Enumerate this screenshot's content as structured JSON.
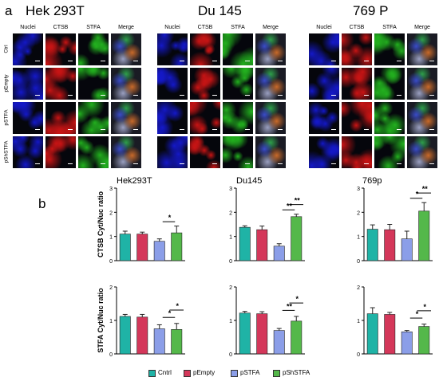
{
  "panel_a": {
    "letter": "a",
    "cell_lines": [
      "Hek 293T",
      "Du 145",
      "769 P"
    ],
    "column_headers": [
      "Nuclei",
      "CTSB",
      "STFA",
      "Merge"
    ],
    "row_labels": [
      "Ctrl",
      "pEmpty",
      "pSTFA",
      "pShSTFA"
    ],
    "channel_colors": {
      "Nuclei": "#1418c8",
      "CTSB": "#c81414",
      "STFA": "#22b01e",
      "Merge": "#8a8c9a"
    }
  },
  "panel_b": {
    "letter": "b"
  },
  "legend": {
    "items": [
      {
        "label": "Cntrl",
        "color": "#1fb3a6"
      },
      {
        "label": "pEmpty",
        "color": "#d4375a"
      },
      {
        "label": "pSTFA",
        "color": "#8b9ee8"
      },
      {
        "label": "pShSTFA",
        "color": "#54b84a"
      }
    ]
  },
  "chart_data": [
    {
      "type": "bar",
      "title": "Hek293T",
      "ylabel": "CTSB Cyt/Nuc ratio",
      "categories": [
        "Cntrl",
        "pEmpty",
        "pSTFA",
        "pShSTFA"
      ],
      "values": [
        1.1,
        1.1,
        0.8,
        1.15
      ],
      "errors": [
        0.12,
        0.08,
        0.1,
        0.28
      ],
      "ylim": [
        0,
        3
      ],
      "yticks": [
        0,
        1,
        2,
        3
      ],
      "significance": [
        {
          "from": 2,
          "to": 3,
          "label": "*"
        }
      ]
    },
    {
      "type": "bar",
      "title": "Du145",
      "ylabel": "",
      "categories": [
        "Cntrl",
        "pEmpty",
        "pSTFA",
        "pShSTFA"
      ],
      "values": [
        1.38,
        1.28,
        0.6,
        1.82
      ],
      "errors": [
        0.06,
        0.15,
        0.1,
        0.1
      ],
      "ylim": [
        0,
        3
      ],
      "yticks": [
        0,
        1,
        2,
        3
      ],
      "significance": [
        {
          "from": 2,
          "to": 3,
          "label": "**",
          "level": 0
        },
        {
          "from": 3,
          "to": 4,
          "label": "**",
          "level": 1
        }
      ]
    },
    {
      "type": "bar",
      "title": "769p",
      "ylabel": "",
      "categories": [
        "Cntrl",
        "pEmpty",
        "pSTFA",
        "pShSTFA"
      ],
      "values": [
        1.3,
        1.28,
        0.9,
        2.05
      ],
      "errors": [
        0.18,
        0.22,
        0.32,
        0.35
      ],
      "ylim": [
        0,
        3
      ],
      "yticks": [
        0,
        1,
        2,
        3
      ],
      "significance": [
        {
          "from": 2,
          "to": 3,
          "label": "*",
          "level": 0
        },
        {
          "from": 3,
          "to": 4,
          "label": "**",
          "level": 1
        }
      ]
    },
    {
      "type": "bar",
      "title": "",
      "ylabel": "STFA Cyt/Nuc ratio",
      "categories": [
        "Cntrl",
        "pEmpty",
        "pSTFA",
        "pShSTFA"
      ],
      "values": [
        1.12,
        1.1,
        0.75,
        0.73
      ],
      "errors": [
        0.06,
        0.08,
        0.12,
        0.18
      ],
      "ylim": [
        0,
        2
      ],
      "yticks": [
        0,
        1,
        2
      ],
      "significance": [
        {
          "from": 2,
          "to": 3,
          "label": "*",
          "level": 0
        },
        {
          "from": 3,
          "to": 4,
          "label": "*",
          "level": 1
        }
      ]
    },
    {
      "type": "bar",
      "title": "",
      "ylabel": "",
      "categories": [
        "Cntrl",
        "pEmpty",
        "pSTFA",
        "pShSTFA"
      ],
      "values": [
        1.22,
        1.2,
        0.7,
        0.98
      ],
      "errors": [
        0.05,
        0.06,
        0.06,
        0.14
      ],
      "ylim": [
        0,
        2
      ],
      "yticks": [
        0,
        1,
        2
      ],
      "significance": [
        {
          "from": 2,
          "to": 3,
          "label": "**",
          "level": 0
        },
        {
          "from": 3,
          "to": 4,
          "label": "*",
          "level": 1
        }
      ]
    },
    {
      "type": "bar",
      "title": "",
      "ylabel": "",
      "categories": [
        "Cntrl",
        "pEmpty",
        "pSTFA",
        "pShSTFA"
      ],
      "values": [
        1.2,
        1.18,
        0.66,
        0.82
      ],
      "errors": [
        0.18,
        0.06,
        0.04,
        0.07
      ],
      "ylim": [
        0,
        2
      ],
      "yticks": [
        0,
        1,
        2
      ],
      "significance": [
        {
          "from": 2,
          "to": 3,
          "label": "*",
          "level": 0
        },
        {
          "from": 3,
          "to": 4,
          "label": "*",
          "level": 1
        }
      ]
    }
  ]
}
